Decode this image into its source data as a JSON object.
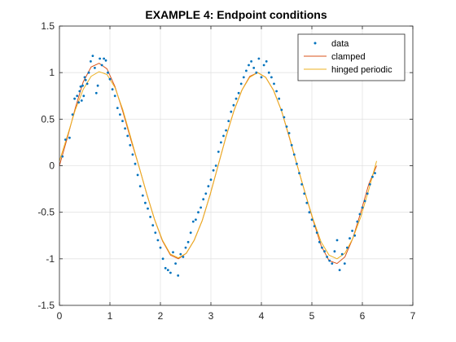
{
  "chart_data": {
    "type": "line",
    "title": "EXAMPLE 4: Endpoint conditions",
    "xlabel": "",
    "ylabel": "",
    "xlim": [
      0,
      7
    ],
    "ylim": [
      -1.5,
      1.5
    ],
    "xticks": [
      0,
      1,
      2,
      3,
      4,
      5,
      6,
      7
    ],
    "xtick_labels": [
      "0",
      "1",
      "2",
      "3",
      "4",
      "5",
      "6",
      "7"
    ],
    "yticks": [
      -1.5,
      -1,
      -0.5,
      0,
      0.5,
      1,
      1.5
    ],
    "ytick_labels": [
      "-1.5",
      "-1",
      "-0.5",
      "0",
      "0.5",
      "1",
      "1.5"
    ],
    "grid": true,
    "legend_position": "top-right",
    "series": [
      {
        "name": "data",
        "kind": "scatter",
        "color": "#0072BD",
        "x": [
          0.06,
          0.12,
          0.2,
          0.26,
          0.3,
          0.35,
          0.38,
          0.4,
          0.42,
          0.44,
          0.46,
          0.48,
          0.5,
          0.52,
          0.55,
          0.58,
          0.62,
          0.66,
          0.7,
          0.73,
          0.76,
          0.8,
          0.84,
          0.88,
          0.92,
          0.96,
          1.0,
          1.05,
          1.1,
          1.15,
          1.2,
          1.25,
          1.3,
          1.35,
          1.4,
          1.45,
          1.5,
          1.55,
          1.6,
          1.65,
          1.7,
          1.75,
          1.8,
          1.85,
          1.9,
          1.95,
          2.0,
          2.05,
          2.1,
          2.15,
          2.2,
          2.25,
          2.3,
          2.35,
          2.4,
          2.45,
          2.5,
          2.55,
          2.6,
          2.65,
          2.7,
          2.75,
          2.8,
          2.85,
          2.9,
          2.95,
          3.0,
          3.05,
          3.1,
          3.15,
          3.2,
          3.25,
          3.3,
          3.35,
          3.4,
          3.45,
          3.5,
          3.55,
          3.6,
          3.65,
          3.7,
          3.75,
          3.8,
          3.85,
          3.9,
          3.95,
          4.0,
          4.05,
          4.1,
          4.15,
          4.2,
          4.25,
          4.3,
          4.35,
          4.4,
          4.45,
          4.5,
          4.55,
          4.6,
          4.65,
          4.7,
          4.75,
          4.8,
          4.85,
          4.9,
          4.95,
          5.0,
          5.05,
          5.1,
          5.15,
          5.2,
          5.25,
          5.3,
          5.35,
          5.4,
          5.45,
          5.5,
          5.55,
          5.6,
          5.65,
          5.7,
          5.75,
          5.8,
          5.85,
          5.9,
          5.95,
          6.0,
          6.05,
          6.1,
          6.15,
          6.2,
          6.25
        ],
        "y": [
          0.1,
          0.28,
          0.3,
          0.55,
          0.72,
          0.75,
          0.68,
          0.8,
          0.85,
          0.7,
          0.86,
          0.75,
          0.95,
          0.92,
          0.88,
          1.0,
          1.12,
          1.18,
          1.05,
          0.78,
          0.86,
          1.15,
          1.08,
          1.15,
          1.13,
          1.0,
          0.93,
          0.82,
          0.75,
          0.62,
          0.55,
          0.48,
          0.4,
          0.32,
          0.22,
          0.12,
          0.02,
          -0.1,
          -0.22,
          -0.32,
          -0.4,
          -0.46,
          -0.55,
          -0.64,
          -0.72,
          -0.8,
          -0.88,
          -1.0,
          -1.1,
          -1.12,
          -1.15,
          -0.93,
          -1.05,
          -1.18,
          -0.95,
          -0.98,
          -0.88,
          -0.82,
          -0.72,
          -0.6,
          -0.58,
          -0.5,
          -0.45,
          -0.36,
          -0.3,
          -0.22,
          -0.15,
          -0.05,
          0.0,
          0.15,
          0.25,
          0.32,
          0.38,
          0.48,
          0.58,
          0.65,
          0.72,
          0.78,
          0.88,
          0.95,
          1.02,
          1.08,
          1.12,
          1.05,
          1.0,
          1.15,
          0.95,
          1.08,
          1.12,
          1.0,
          0.95,
          0.88,
          0.8,
          0.72,
          0.6,
          0.52,
          0.42,
          0.35,
          0.22,
          0.12,
          0.02,
          -0.08,
          -0.2,
          -0.3,
          -0.4,
          -0.5,
          -0.58,
          -0.65,
          -0.72,
          -0.82,
          -0.88,
          -0.92,
          -0.98,
          -1.02,
          -1.05,
          -0.92,
          -0.8,
          -1.12,
          -0.95,
          -1.05,
          -0.88,
          -0.78,
          -0.7,
          -0.75,
          -0.6,
          -0.52,
          -0.45,
          -0.38,
          -0.3,
          -0.2,
          -0.12,
          -0.08
        ]
      },
      {
        "name": "clamped",
        "kind": "line",
        "color": "#D95319",
        "x": [
          0,
          0.157,
          0.314,
          0.471,
          0.628,
          0.785,
          0.942,
          1.1,
          1.257,
          1.414,
          1.571,
          1.728,
          1.885,
          2.042,
          2.199,
          2.356,
          2.513,
          2.67,
          2.827,
          2.985,
          3.142,
          3.299,
          3.456,
          3.613,
          3.77,
          3.927,
          4.084,
          4.241,
          4.398,
          4.555,
          4.712,
          4.869,
          5.027,
          5.184,
          5.341,
          5.498,
          5.655,
          5.812,
          5.969,
          6.126,
          6.283
        ],
        "y": [
          0,
          0.3,
          0.62,
          0.9,
          1.06,
          1.1,
          1.04,
          0.85,
          0.58,
          0.28,
          0.0,
          -0.3,
          -0.58,
          -0.81,
          -0.96,
          -1.0,
          -0.94,
          -0.8,
          -0.59,
          -0.31,
          0.0,
          0.31,
          0.59,
          0.81,
          0.96,
          1.0,
          0.95,
          0.81,
          0.59,
          0.3,
          0.0,
          -0.3,
          -0.59,
          -0.86,
          -1.02,
          -1.05,
          -0.98,
          -0.78,
          -0.5,
          -0.2,
          0.0
        ]
      },
      {
        "name": "hinged periodic",
        "kind": "line",
        "color": "#EDB120",
        "x": [
          0,
          0.157,
          0.314,
          0.471,
          0.628,
          0.785,
          0.942,
          1.1,
          1.257,
          1.414,
          1.571,
          1.728,
          1.885,
          2.042,
          2.199,
          2.356,
          2.513,
          2.67,
          2.827,
          2.985,
          3.142,
          3.299,
          3.456,
          3.613,
          3.77,
          3.927,
          4.084,
          4.241,
          4.398,
          4.555,
          4.712,
          4.869,
          5.027,
          5.184,
          5.341,
          5.498,
          5.655,
          5.812,
          5.969,
          6.126,
          6.283
        ],
        "y": [
          0.05,
          0.32,
          0.6,
          0.82,
          0.96,
          1.01,
          0.98,
          0.84,
          0.6,
          0.3,
          0.0,
          -0.3,
          -0.58,
          -0.8,
          -0.95,
          -0.99,
          -0.94,
          -0.8,
          -0.59,
          -0.31,
          0.0,
          0.31,
          0.59,
          0.81,
          0.95,
          1.0,
          0.95,
          0.81,
          0.59,
          0.31,
          0.0,
          -0.3,
          -0.58,
          -0.82,
          -0.96,
          -1.0,
          -0.94,
          -0.78,
          -0.55,
          -0.26,
          0.05
        ]
      }
    ]
  }
}
